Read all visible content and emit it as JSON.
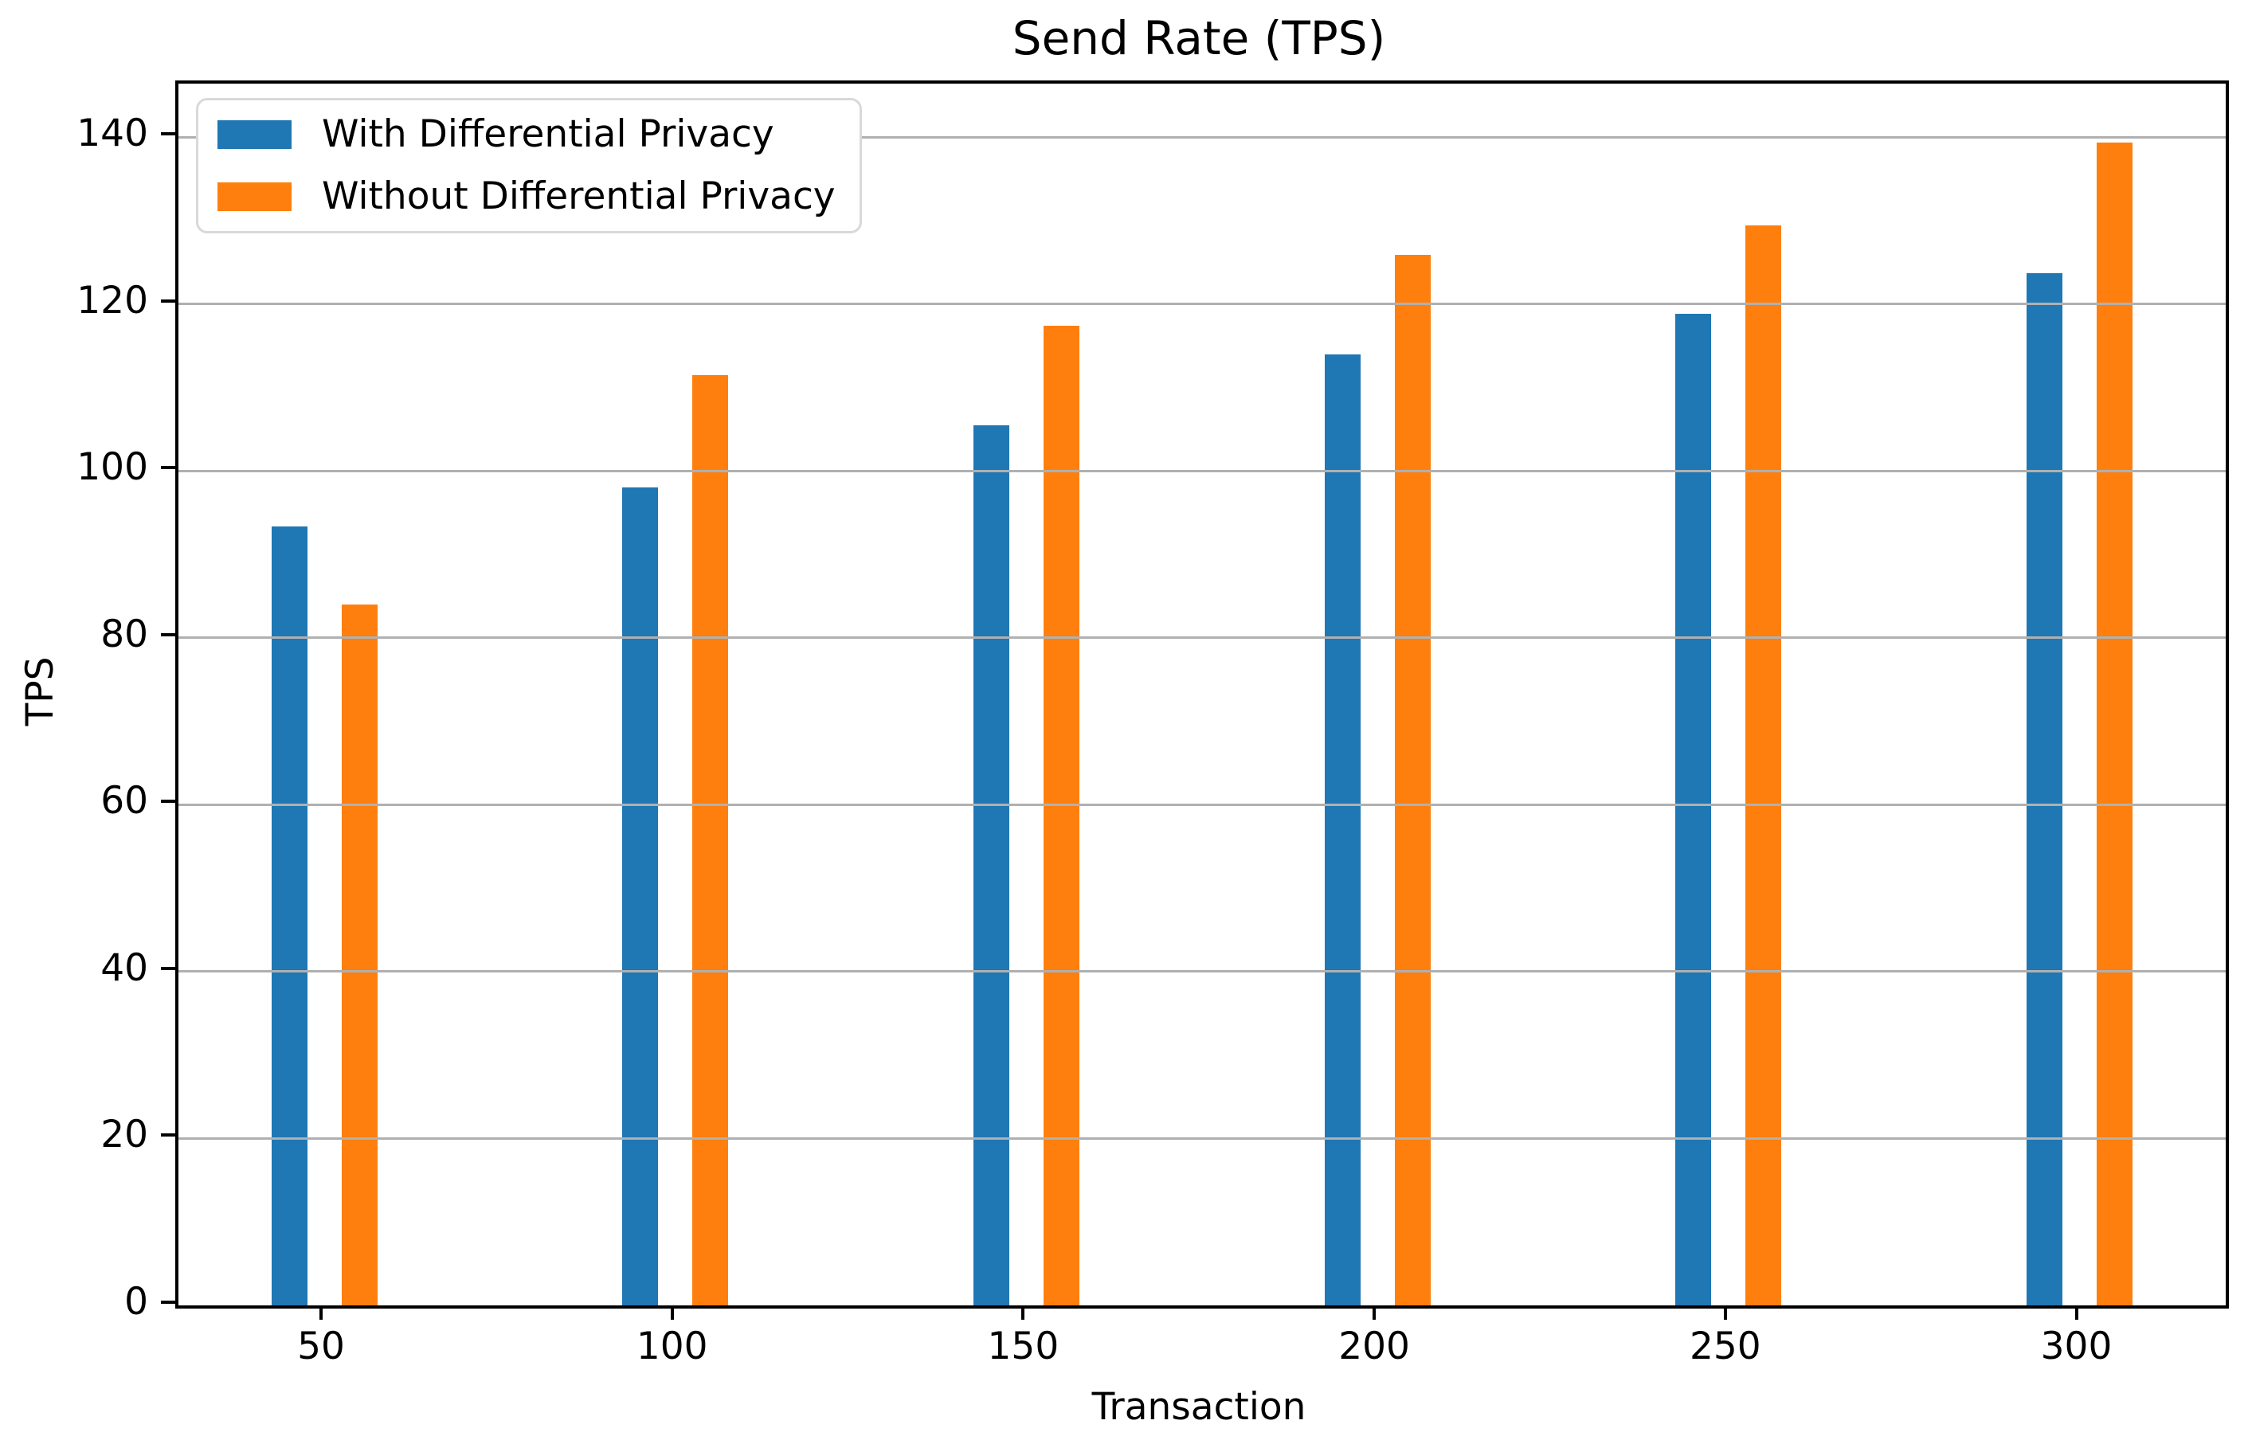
{
  "title": "Send Rate (TPS)",
  "chart_data": {
    "type": "bar",
    "title": "Send Rate (TPS)",
    "xlabel": "Transaction",
    "ylabel": "TPS",
    "categories": [
      "50",
      "100",
      "150",
      "200",
      "250",
      "300"
    ],
    "series": [
      {
        "name": "With Differential Privacy",
        "color": "#1f77b4",
        "values": [
          93.3,
          98.0,
          105.5,
          114.0,
          118.8,
          123.7
        ]
      },
      {
        "name": "Without Differential Privacy",
        "color": "#ff7f0e",
        "values": [
          84.0,
          111.5,
          117.4,
          125.9,
          129.4,
          139.3
        ]
      }
    ],
    "ylim": [
      0,
      146.4
    ],
    "yticks": [
      0,
      20,
      40,
      60,
      80,
      100,
      120,
      140
    ],
    "grid": "horizontal",
    "grid_color": "#b0b0b0",
    "legend_position": "upper-left",
    "background": "#ffffff"
  }
}
